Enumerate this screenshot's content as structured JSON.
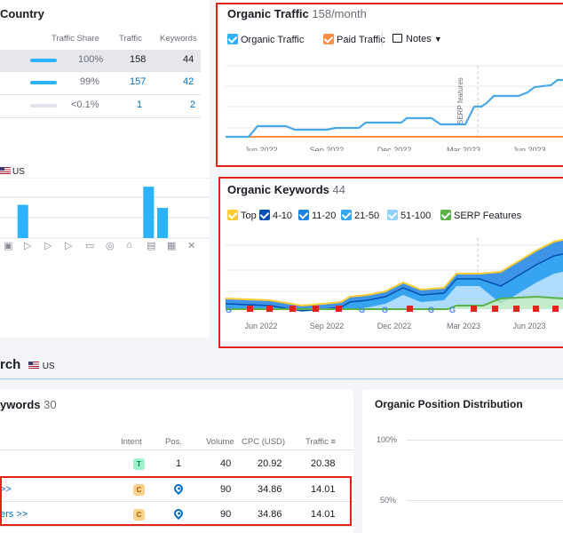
{
  "country": {
    "title": "Country",
    "columns": [
      "Traffic Share",
      "Traffic",
      "Keywords"
    ],
    "rows": [
      {
        "share": "100%",
        "share_pct": 100,
        "traffic": "158",
        "keywords": "44"
      },
      {
        "share": "99%",
        "share_pct": 99,
        "traffic": "157",
        "keywords": "42"
      },
      {
        "share": "<0.1%",
        "share_pct": 0.1,
        "traffic": "1",
        "keywords": "2"
      }
    ]
  },
  "serp_chart": {
    "country_label": "US",
    "bar_values": [
      0,
      0.55,
      0,
      0,
      0,
      0,
      0,
      0,
      0,
      0,
      0.85,
      0.5,
      0,
      0,
      0
    ],
    "icons": [
      "image-icon",
      "video-icon",
      "video-icon",
      "video-icon",
      "speech-bubble-icon",
      "location-pin-icon",
      "graduation-cap-icon",
      "news-icon",
      "briefcase-icon",
      "x-icon"
    ]
  },
  "organic_traffic": {
    "title": "Organic Traffic",
    "subtitle": "158/month",
    "legend": {
      "organic": "Organic Traffic",
      "paid": "Paid Traffic",
      "notes": "Notes"
    },
    "annotation": "SERP features",
    "x_ticks": [
      "Jun 2022",
      "Sep 2022",
      "Dec 2022",
      "Mar 2023",
      "Jun 2023"
    ],
    "colors": {
      "organic": "#4aa7e8",
      "paid": "#ff8c43"
    }
  },
  "organic_keywords": {
    "title": "Organic Keywords",
    "count": "44",
    "legend": [
      "Top 3",
      "4-10",
      "11-20",
      "21-50",
      "51-100",
      "SERP Features"
    ],
    "legend_colors": [
      "#ffcc33",
      "#0050b3",
      "#1c83e3",
      "#35a7f2",
      "#8fd1ff",
      "#5ab347"
    ],
    "x_ticks": [
      "Jun 2022",
      "Sep 2022",
      "Dec 2022",
      "Mar 2023",
      "Jun 2023"
    ]
  },
  "research": {
    "title": "rch",
    "country": "US"
  },
  "keywords_table": {
    "title": "ywords",
    "count": "30",
    "columns": [
      "Intent",
      "Pos.",
      "Volume",
      "CPC (USD)",
      "Traffic"
    ],
    "rows": [
      {
        "kw": "",
        "intent": "T",
        "pos": "1",
        "volume": "40",
        "cpc": "20.92",
        "traffic": "20.38"
      },
      {
        "kw": ">>",
        "intent": "C",
        "pos": "serp",
        "volume": "90",
        "cpc": "34.86",
        "traffic": "14.01"
      },
      {
        "kw": "ers >>",
        "intent": "C",
        "pos": "serp",
        "volume": "90",
        "cpc": "34.86",
        "traffic": "14.01"
      }
    ]
  },
  "position_distribution": {
    "title": "Organic Position Distribution",
    "y_ticks": [
      "100%",
      "50%"
    ]
  }
}
